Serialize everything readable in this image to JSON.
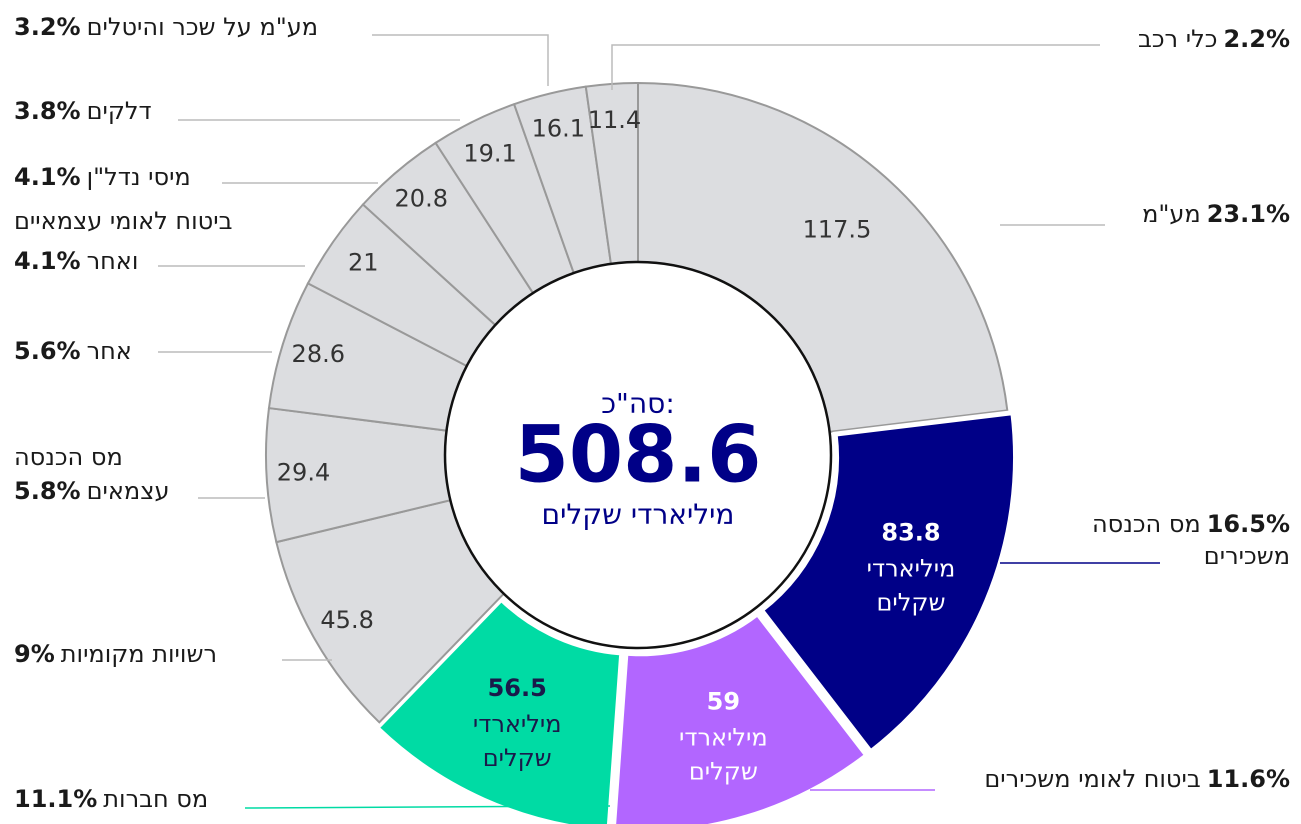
{
  "chart_data": {
    "type": "donut",
    "total_label": "סה\"כ:",
    "total": 508.6,
    "unit": "מיליארדי שקלים",
    "unit_lines": [
      "מיליארדי",
      "שקלים"
    ],
    "categories": [
      [
        "מע\"מ"
      ],
      [
        "מס הכנסה",
        "משכירים"
      ],
      [
        "ביטוח לאומי משכירים"
      ],
      [
        "מס חברות"
      ],
      [
        "רשויות מקומיות"
      ],
      [
        "מס הכנסה",
        "עצמאים"
      ],
      [
        "אחר"
      ],
      [
        "ביטוח לאומי עצמאיים",
        "ואחר"
      ],
      [
        "מיסי נדל\"ן"
      ],
      [
        "דלקים"
      ],
      [
        "מע\"מ על שכר והיטלים"
      ],
      [
        "כלי רכב"
      ]
    ],
    "values": [
      117.5,
      83.8,
      59,
      56.5,
      45.8,
      29.4,
      28.6,
      21,
      20.8,
      19.1,
      16.1,
      11.4
    ],
    "percent_labels": [
      "23.1%",
      "16.5%",
      "11.6%",
      "11.1%",
      "9%",
      "5.8%",
      "5.6%",
      "4.1%",
      "4.1%",
      "3.8%",
      "3.2%",
      "2.2%"
    ],
    "colors": [
      "#dcdde0",
      "#000087",
      "#b266ff",
      "#00dba4",
      "#dcdde0",
      "#dcdde0",
      "#dcdde0",
      "#dcdde0",
      "#dcdde0",
      "#dcdde0",
      "#dcdde0",
      "#dcdde0"
    ],
    "highlight": [
      false,
      true,
      true,
      true,
      false,
      false,
      false,
      false,
      false,
      false,
      false,
      false
    ]
  }
}
